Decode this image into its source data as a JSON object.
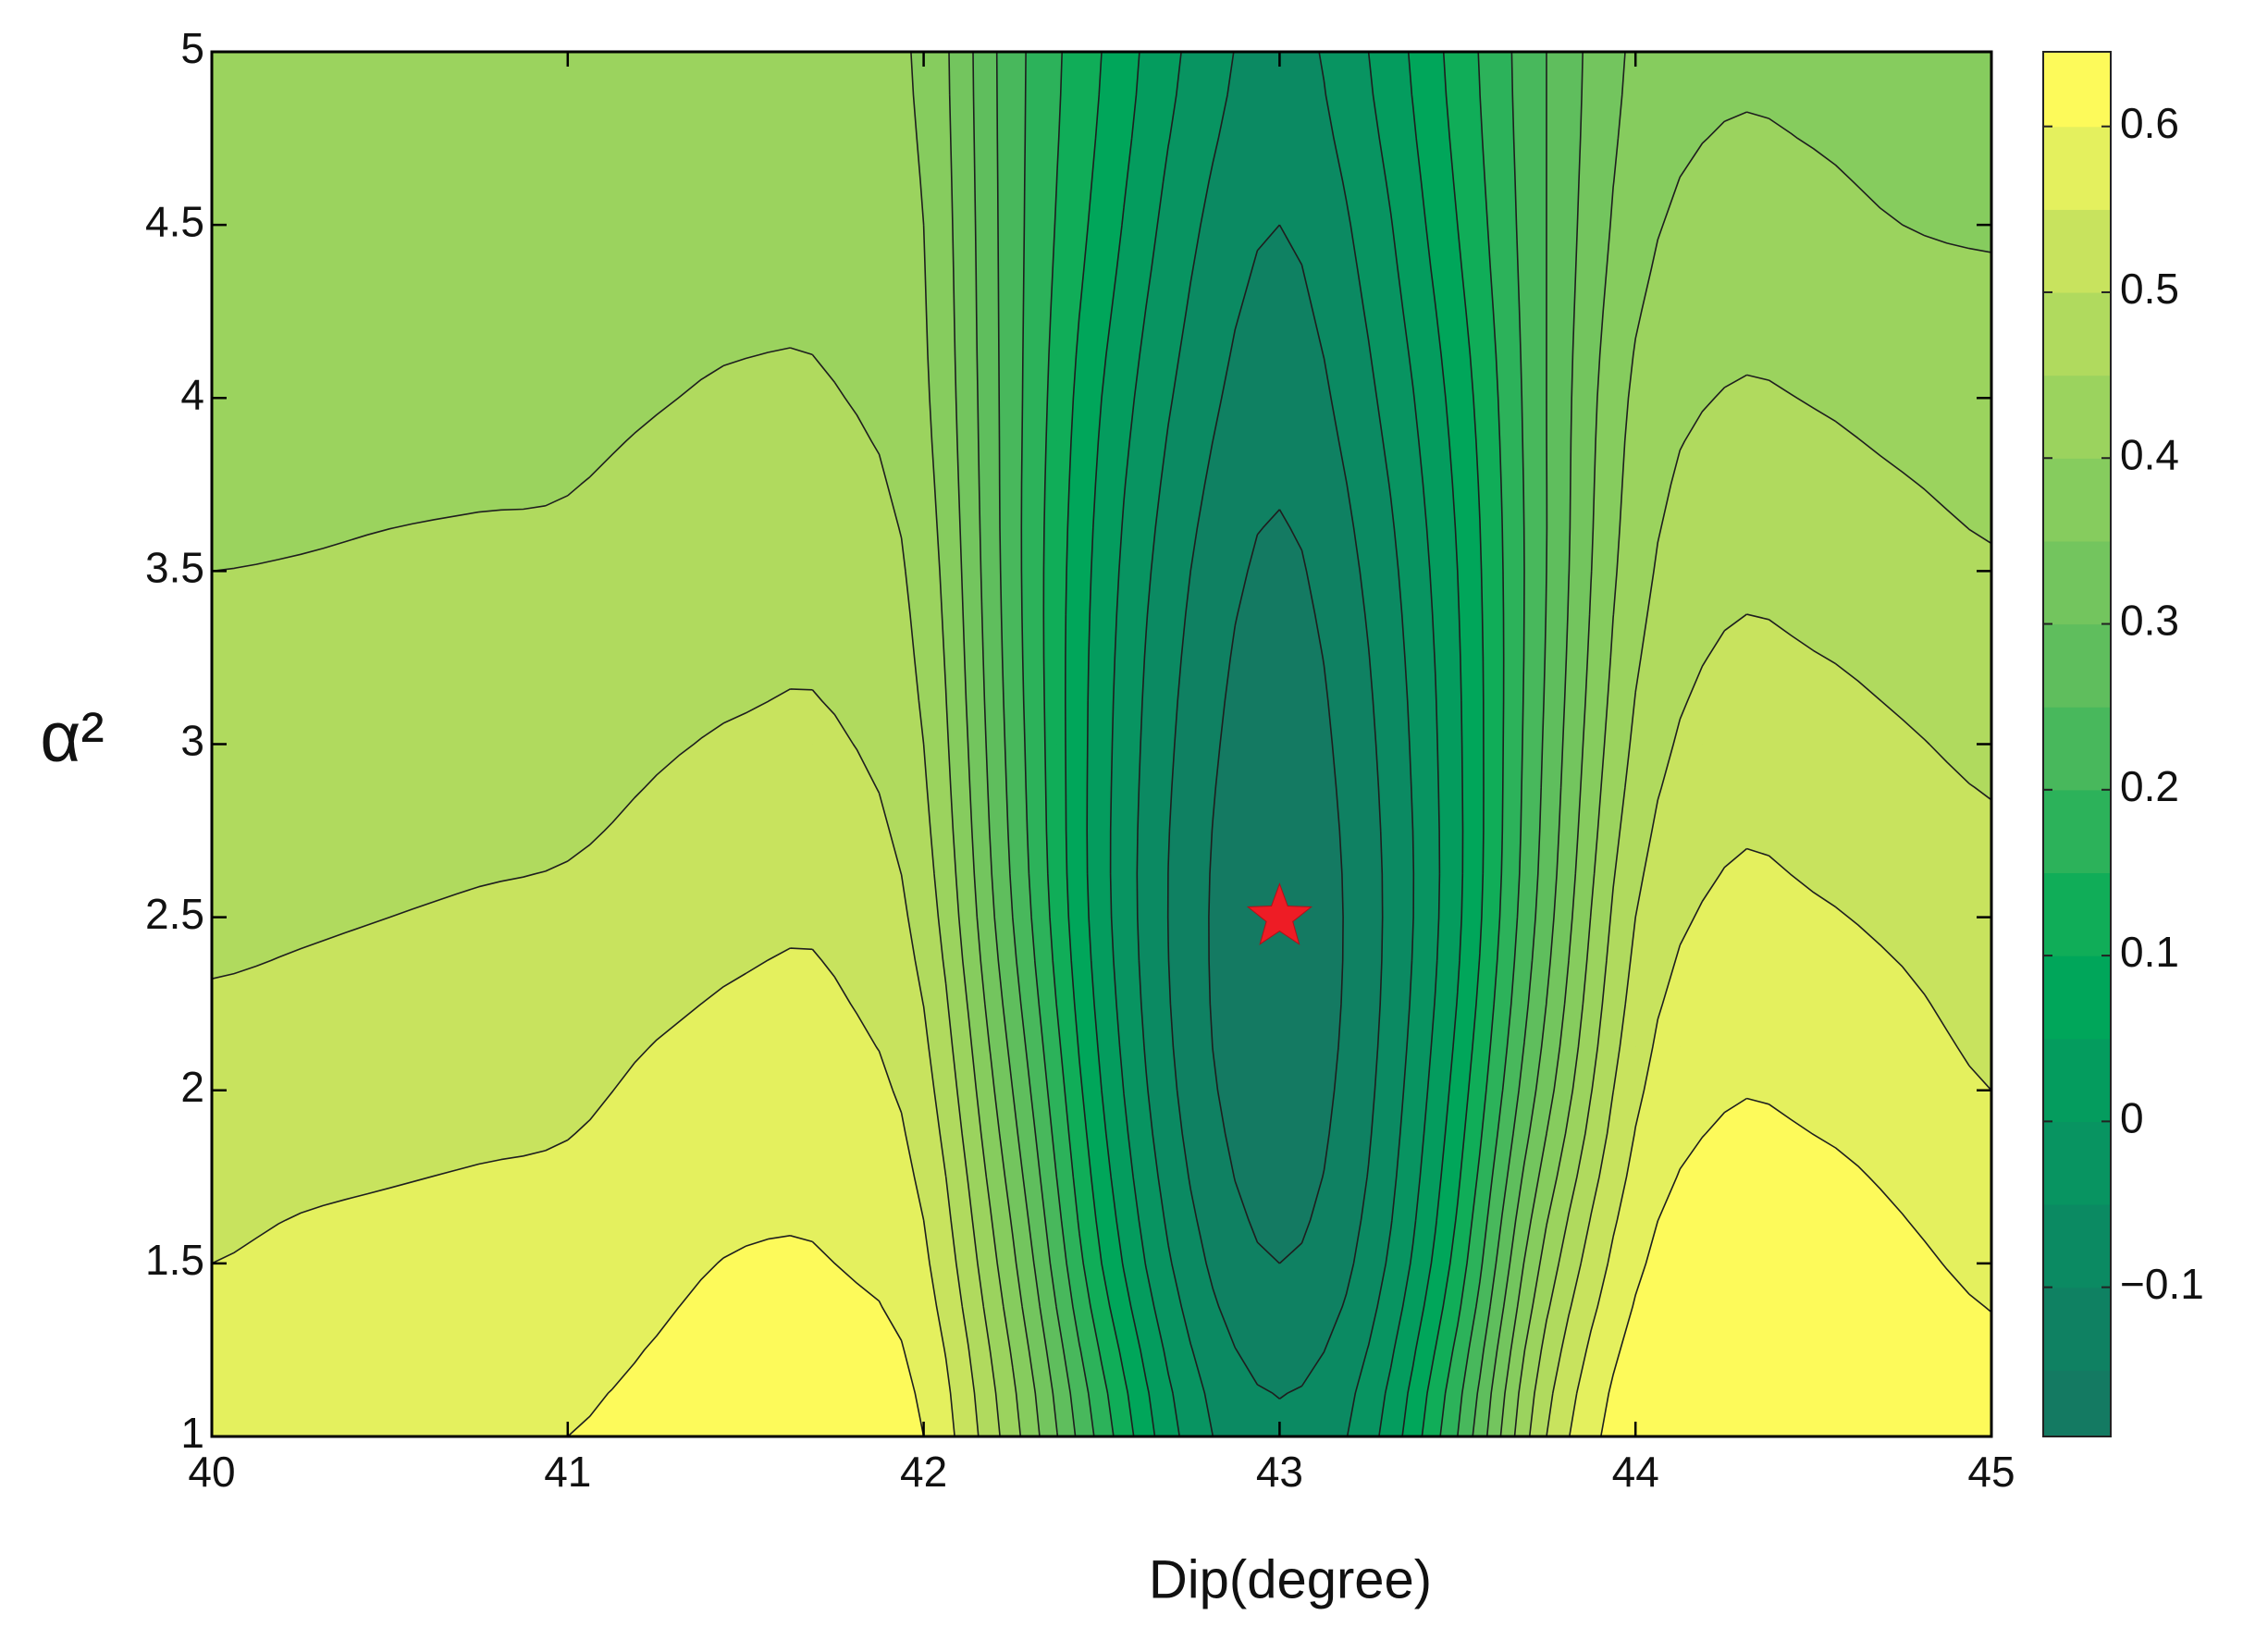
{
  "chart_data": {
    "type": "contour",
    "xlabel": "Dip(degree)",
    "ylabel": "α²",
    "x": [
      40,
      40.25,
      40.5,
      40.75,
      41,
      41.25,
      41.5,
      41.75,
      42,
      42.25,
      42.5,
      42.75,
      43,
      43.25,
      43.5,
      43.75,
      44,
      44.25,
      44.5,
      44.75,
      45
    ],
    "y": [
      1,
      1.5,
      2,
      2.5,
      3,
      3.5,
      4,
      4.5,
      5
    ],
    "z": [
      [
        0.58,
        0.59,
        0.592,
        0.597,
        0.6,
        0.61,
        0.625,
        0.625,
        0.6,
        0.42,
        0.18,
        -0.02,
        -0.09,
        -0.02,
        0.2,
        0.5,
        0.64,
        0.67,
        0.665,
        0.645,
        0.62
      ],
      [
        0.55,
        0.56,
        0.565,
        0.57,
        0.575,
        0.59,
        0.603,
        0.6,
        0.56,
        0.36,
        0.1,
        -0.08,
        -0.15,
        -0.08,
        0.12,
        0.42,
        0.59,
        0.635,
        0.63,
        0.61,
        0.59
      ],
      [
        0.52,
        0.525,
        0.53,
        0.535,
        0.54,
        0.56,
        0.57,
        0.568,
        0.52,
        0.3,
        0.05,
        -0.12,
        -0.18,
        -0.11,
        0.07,
        0.33,
        0.54,
        0.595,
        0.59,
        0.575,
        0.55
      ],
      [
        0.49,
        0.495,
        0.5,
        0.505,
        0.51,
        0.525,
        0.54,
        0.54,
        0.48,
        0.25,
        0.02,
        -0.13,
        -0.19,
        -0.12,
        0.04,
        0.28,
        0.5,
        0.56,
        0.555,
        0.54,
        0.52
      ],
      [
        0.47,
        0.472,
        0.475,
        0.478,
        0.48,
        0.495,
        0.505,
        0.505,
        0.45,
        0.23,
        0.02,
        -0.12,
        -0.18,
        -0.11,
        0.04,
        0.26,
        0.46,
        0.525,
        0.52,
        0.505,
        0.49
      ],
      [
        0.45,
        0.452,
        0.455,
        0.457,
        0.458,
        0.47,
        0.48,
        0.478,
        0.43,
        0.22,
        0.03,
        -0.1,
        -0.16,
        -0.09,
        0.05,
        0.25,
        0.43,
        0.487,
        0.483,
        0.47,
        0.455
      ],
      [
        0.43,
        0.432,
        0.435,
        0.437,
        0.44,
        0.448,
        0.455,
        0.452,
        0.41,
        0.22,
        0.05,
        -0.07,
        -0.13,
        -0.06,
        0.07,
        0.25,
        0.41,
        0.452,
        0.448,
        0.435,
        0.425
      ],
      [
        0.42,
        0.42,
        0.42,
        0.42,
        0.42,
        0.43,
        0.435,
        0.432,
        0.4,
        0.22,
        0.08,
        -0.04,
        -0.1,
        -0.03,
        0.1,
        0.25,
        0.38,
        0.42,
        0.415,
        0.4,
        0.395
      ],
      [
        0.41,
        0.41,
        0.41,
        0.41,
        0.41,
        0.415,
        0.42,
        0.418,
        0.39,
        0.22,
        0.1,
        -0.01,
        -0.07,
        0.0,
        0.12,
        0.25,
        0.36,
        0.39,
        0.385,
        0.37,
        0.36
      ]
    ],
    "levels": [
      -0.15,
      -0.1,
      -0.05,
      0,
      0.05,
      0.1,
      0.15,
      0.2,
      0.25,
      0.3,
      0.35,
      0.4,
      0.45,
      0.5,
      0.55,
      0.6
    ],
    "level_colors": [
      "#147a62",
      "#0f8162",
      "#0b8a62",
      "#089461",
      "#049c5e",
      "#00a65a",
      "#10ad58",
      "#2cb25a",
      "#48b85c",
      "#5fbe5d",
      "#73c55e",
      "#86cc5e",
      "#9bd35e",
      "#b0da5e",
      "#c8e35e",
      "#e4f05e",
      "#fdfa5a"
    ],
    "line_color": "#1e1e1e",
    "xlim": [
      40,
      45
    ],
    "ylim": [
      1,
      5
    ],
    "xticks": [
      40,
      41,
      42,
      43,
      44,
      45
    ],
    "yticks": [
      1,
      1.5,
      2,
      2.5,
      3,
      3.5,
      4,
      4.5,
      5
    ],
    "colorbar": {
      "clim": [
        -0.19,
        0.645
      ],
      "ticks": [
        {
          "value": -0.1,
          "label": "−0.1"
        },
        0,
        0.1,
        0.2,
        0.3,
        0.4,
        0.5,
        0.6
      ]
    },
    "marker": {
      "x": 43,
      "y": 2.5,
      "color": "#ee1c25",
      "shape": "star"
    }
  }
}
